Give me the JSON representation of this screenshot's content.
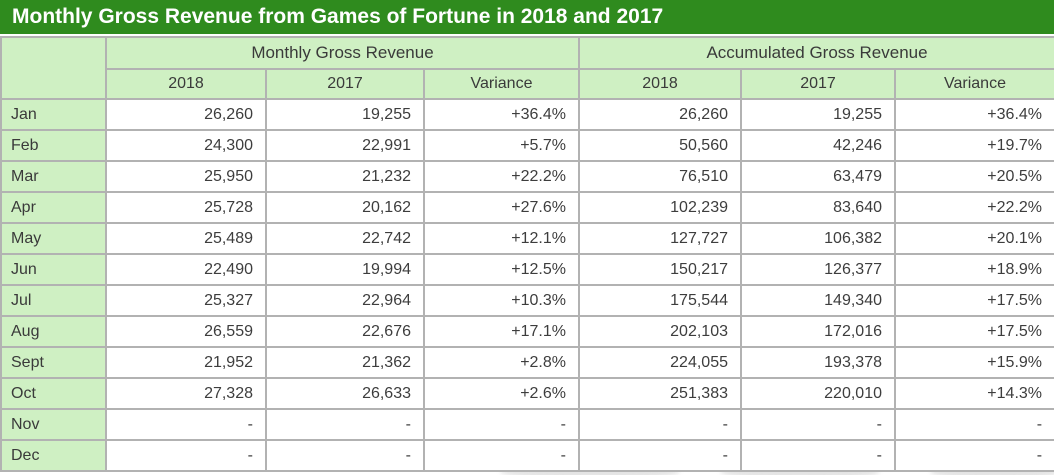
{
  "title": "Monthly Gross Revenue from Games of Fortune in 2018 and 2017",
  "colors": {
    "title_bg": "#2f8b1e",
    "title_text": "#ffffff",
    "header_bg": "#cff0c3",
    "border": "#b2b2b2",
    "body_text": "#3d3d3d"
  },
  "table": {
    "group_headers": [
      "Monthly Gross Revenue",
      "Accumulated Gross Revenue"
    ],
    "sub_headers": [
      "2018",
      "2017",
      "Variance",
      "2018",
      "2017",
      "Variance"
    ],
    "rows": [
      {
        "month": "Jan",
        "cells": [
          "26,260",
          "19,255",
          "+36.4%",
          "26,260",
          "19,255",
          "+36.4%"
        ]
      },
      {
        "month": "Feb",
        "cells": [
          "24,300",
          "22,991",
          "+5.7%",
          "50,560",
          "42,246",
          "+19.7%"
        ]
      },
      {
        "month": "Mar",
        "cells": [
          "25,950",
          "21,232",
          "+22.2%",
          "76,510",
          "63,479",
          "+20.5%"
        ]
      },
      {
        "month": "Apr",
        "cells": [
          "25,728",
          "20,162",
          "+27.6%",
          "102,239",
          "83,640",
          "+22.2%"
        ]
      },
      {
        "month": "May",
        "cells": [
          "25,489",
          "22,742",
          "+12.1%",
          "127,727",
          "106,382",
          "+20.1%"
        ]
      },
      {
        "month": "Jun",
        "cells": [
          "22,490",
          "19,994",
          "+12.5%",
          "150,217",
          "126,377",
          "+18.9%"
        ]
      },
      {
        "month": "Jul",
        "cells": [
          "25,327",
          "22,964",
          "+10.3%",
          "175,544",
          "149,340",
          "+17.5%"
        ]
      },
      {
        "month": "Aug",
        "cells": [
          "26,559",
          "22,676",
          "+17.1%",
          "202,103",
          "172,016",
          "+17.5%"
        ]
      },
      {
        "month": "Sept",
        "cells": [
          "21,952",
          "21,362",
          "+2.8%",
          "224,055",
          "193,378",
          "+15.9%"
        ]
      },
      {
        "month": "Oct",
        "cells": [
          "27,328",
          "26,633",
          "+2.6%",
          "251,383",
          "220,010",
          "+14.3%"
        ]
      },
      {
        "month": "Nov",
        "cells": [
          "-",
          "-",
          "-",
          "-",
          "-",
          "-"
        ]
      },
      {
        "month": "Dec",
        "cells": [
          "-",
          "-",
          "-",
          "-",
          "-",
          "-"
        ]
      }
    ]
  },
  "chart_data": {
    "type": "table",
    "title": "Monthly Gross Revenue from Games of Fortune in 2018 and 2017",
    "column_groups": [
      "Monthly Gross Revenue",
      "Accumulated Gross Revenue"
    ],
    "columns": [
      "Month",
      "Monthly 2018",
      "Monthly 2017",
      "Monthly Variance",
      "Accumulated 2018",
      "Accumulated 2017",
      "Accumulated Variance"
    ],
    "rows": [
      [
        "Jan",
        26260,
        19255,
        "+36.4%",
        26260,
        19255,
        "+36.4%"
      ],
      [
        "Feb",
        24300,
        22991,
        "+5.7%",
        50560,
        42246,
        "+19.7%"
      ],
      [
        "Mar",
        25950,
        21232,
        "+22.2%",
        76510,
        63479,
        "+20.5%"
      ],
      [
        "Apr",
        25728,
        20162,
        "+27.6%",
        102239,
        83640,
        "+22.2%"
      ],
      [
        "May",
        25489,
        22742,
        "+12.1%",
        127727,
        106382,
        "+20.1%"
      ],
      [
        "Jun",
        22490,
        19994,
        "+12.5%",
        150217,
        126377,
        "+18.9%"
      ],
      [
        "Jul",
        25327,
        22964,
        "+10.3%",
        175544,
        149340,
        "+17.5%"
      ],
      [
        "Aug",
        26559,
        22676,
        "+17.1%",
        202103,
        172016,
        "+17.5%"
      ],
      [
        "Sept",
        21952,
        21362,
        "+2.8%",
        224055,
        193378,
        "+15.9%"
      ],
      [
        "Oct",
        27328,
        26633,
        "+2.6%",
        251383,
        220010,
        "+14.3%"
      ],
      [
        "Nov",
        null,
        null,
        null,
        null,
        null,
        null
      ],
      [
        "Dec",
        null,
        null,
        null,
        null,
        null,
        null
      ]
    ]
  }
}
